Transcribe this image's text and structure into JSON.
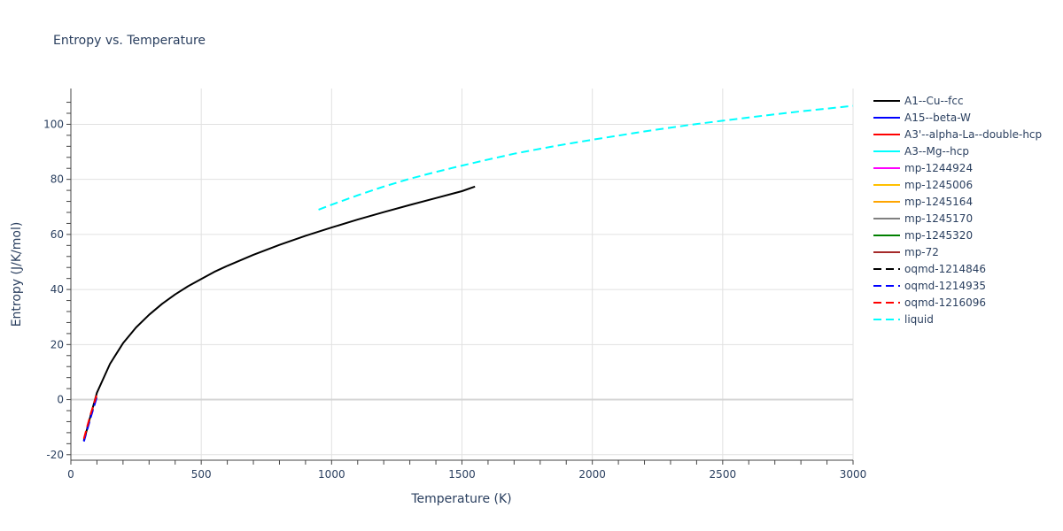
{
  "chart_data": {
    "type": "line",
    "title": "Entropy vs. Temperature",
    "xlabel": "Temperature (K)",
    "ylabel": "Entropy (J/K/mol)",
    "xlim": [
      0,
      3000
    ],
    "ylim": [
      -22,
      113
    ],
    "xticks": [
      0,
      500,
      1000,
      1500,
      2000,
      2500,
      3000
    ],
    "yticks": [
      -20,
      0,
      20,
      40,
      60,
      80,
      100
    ],
    "grid": true,
    "legend_position": "right",
    "series": [
      {
        "name": "A1--Cu--fcc",
        "color": "#000000",
        "dash": "solid",
        "x": [
          50,
          75,
          100,
          150,
          200,
          250,
          300,
          350,
          400,
          450,
          500,
          550,
          600,
          700,
          800,
          900,
          1000,
          1100,
          1200,
          1300,
          1400,
          1500,
          1550
        ],
        "y": [
          -15,
          -6,
          2.5,
          13,
          20.5,
          26.2,
          30.8,
          34.8,
          38.2,
          41.2,
          43.8,
          46.4,
          48.6,
          52.6,
          56.2,
          59.5,
          62.5,
          65.4,
          68.1,
          70.7,
          73.2,
          75.7,
          77.4
        ]
      },
      {
        "name": "A15--beta-W",
        "color": "#0000ff",
        "dash": "solid",
        "x": [],
        "y": []
      },
      {
        "name": "A3'--alpha-La--double-hcp",
        "color": "#ff0000",
        "dash": "solid",
        "x": [],
        "y": []
      },
      {
        "name": "A3--Mg--hcp",
        "color": "#00ffff",
        "dash": "solid",
        "x": [],
        "y": []
      },
      {
        "name": "mp-1244924",
        "color": "#ff00ff",
        "dash": "solid",
        "x": [],
        "y": []
      },
      {
        "name": "mp-1245006",
        "color": "#ffc000",
        "dash": "solid",
        "x": [],
        "y": []
      },
      {
        "name": "mp-1245164",
        "color": "#ffa500",
        "dash": "solid",
        "x": [],
        "y": []
      },
      {
        "name": "mp-1245170",
        "color": "#808080",
        "dash": "solid",
        "x": [],
        "y": []
      },
      {
        "name": "mp-1245320",
        "color": "#008000",
        "dash": "solid",
        "x": [],
        "y": []
      },
      {
        "name": "mp-72",
        "color": "#a52a2a",
        "dash": "solid",
        "x": [],
        "y": []
      },
      {
        "name": "oqmd-1214846",
        "color": "#000000",
        "dash": "dash",
        "x": [
          50,
          75,
          100
        ],
        "y": [
          -14.8,
          -6.2,
          1.5
        ]
      },
      {
        "name": "oqmd-1214935",
        "color": "#0000ff",
        "dash": "dash",
        "x": [
          50,
          75,
          100
        ],
        "y": [
          -15.2,
          -6.8,
          1
        ]
      },
      {
        "name": "oqmd-1216096",
        "color": "#ff0000",
        "dash": "dash",
        "x": [
          50,
          75,
          100
        ],
        "y": [
          -14.2,
          -5.5,
          2
        ]
      },
      {
        "name": "liquid",
        "color": "#00ffff",
        "dash": "dash",
        "x": [
          950,
          1000,
          1100,
          1200,
          1300,
          1400,
          1500,
          1600,
          1700,
          1800,
          1900,
          2000,
          2100,
          2200,
          2300,
          2400,
          2500,
          2600,
          2700,
          2800,
          2900,
          3000
        ],
        "y": [
          69,
          70.8,
          74.2,
          77.4,
          80.2,
          82.7,
          85,
          87.2,
          89.3,
          91.1,
          92.8,
          94.4,
          95.9,
          97.4,
          98.8,
          100.1,
          101.3,
          102.5,
          103.6,
          104.7,
          105.7,
          106.7
        ]
      }
    ]
  }
}
